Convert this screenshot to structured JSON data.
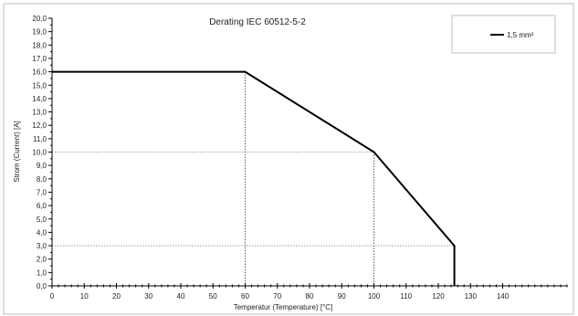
{
  "chart_data": {
    "type": "line",
    "title": "Derating IEC 60512-5-2",
    "xlabel": "Temperatur (Temperature) [°C]",
    "ylabel": "Strom (Current) [A]",
    "xlim": [
      0,
      160
    ],
    "ylim": [
      0,
      20
    ],
    "x_ticks": [
      "0",
      "10",
      "20",
      "30",
      "40",
      "50",
      "60",
      "70",
      "80",
      "90",
      "100",
      "110",
      "120",
      "130",
      "140"
    ],
    "y_ticks": [
      "0,0",
      "1,0",
      "2,0",
      "3,0",
      "4,0",
      "5,0",
      "6,0",
      "7,0",
      "8,0",
      "9,0",
      "10,0",
      "11,0",
      "12,0",
      "13,0",
      "14,0",
      "15,0",
      "16,0",
      "17,0",
      "18,0",
      "19,0",
      "20,0"
    ],
    "series": [
      {
        "name": "1,5 mm²",
        "color": "#000000",
        "points": [
          [
            0,
            16
          ],
          [
            60,
            16
          ],
          [
            100,
            10
          ],
          [
            125,
            3
          ],
          [
            125,
            0
          ]
        ]
      }
    ],
    "reference_lines": [
      {
        "x": 60,
        "y": 16,
        "style": "dotted"
      },
      {
        "x": 100,
        "y": 10,
        "style": "dotted"
      },
      {
        "x": 125,
        "y": 3,
        "style": "dotted"
      }
    ],
    "legend_position": "top-right",
    "grid": false
  }
}
